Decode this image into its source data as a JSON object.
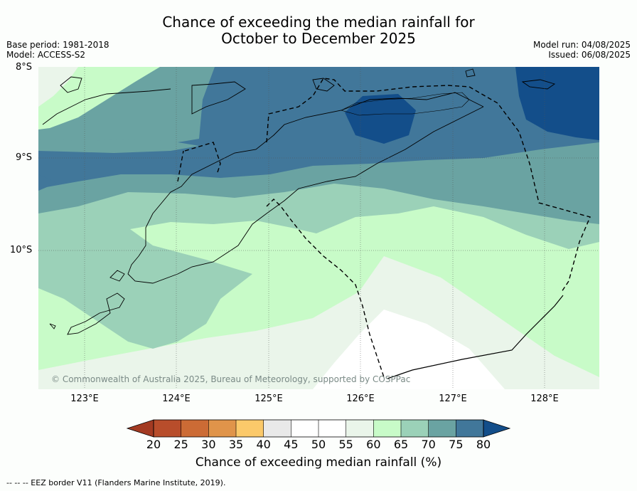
{
  "title_line1": "Chance of exceeding the median rainfall for",
  "title_line2": "October to December 2025",
  "base_period": "Base period: 1981-2018",
  "model": "Model: ACCESS-S2",
  "model_run": "Model run: 04/08/2025",
  "issued": "Issued: 06/08/2025",
  "copyright": "© Commonwealth of Australia 2025, Bureau of Meteorology, supported by COSPPac",
  "footnote": "--  --  -- EEZ border V11 (Flanders Marine Institute, 2019).",
  "lat_labels": [
    "8°S",
    "9°S",
    "10°S"
  ],
  "lon_labels": [
    "123°E",
    "124°E",
    "125°E",
    "126°E",
    "127°E",
    "128°E"
  ],
  "colorbar": {
    "title": "Chance of exceeding median rainfall (%)",
    "ticks": [
      "20",
      "25",
      "30",
      "35",
      "40",
      "45",
      "50",
      "55",
      "60",
      "65",
      "70",
      "75",
      "80"
    ],
    "colors": [
      "#a33a22",
      "#b84d2b",
      "#cc6b35",
      "#e0944a",
      "#fbc96a",
      "#e9e9e9",
      "#ffffff",
      "#ffffff",
      "#eaf5ea",
      "#c8fbc8",
      "#9bd1b8",
      "#6aa3a2",
      "#41779a",
      "#134e8a"
    ],
    "below_color": "#a33a22",
    "above_color": "#134e8a"
  },
  "map_colors": {
    "c80": "#134e8a",
    "c75": "#41779a",
    "c70": "#6aa3a2",
    "c65": "#9bd1b8",
    "c60": "#c8fbc8",
    "c55": "#eaf5ea",
    "c50": "#ffffff"
  }
}
